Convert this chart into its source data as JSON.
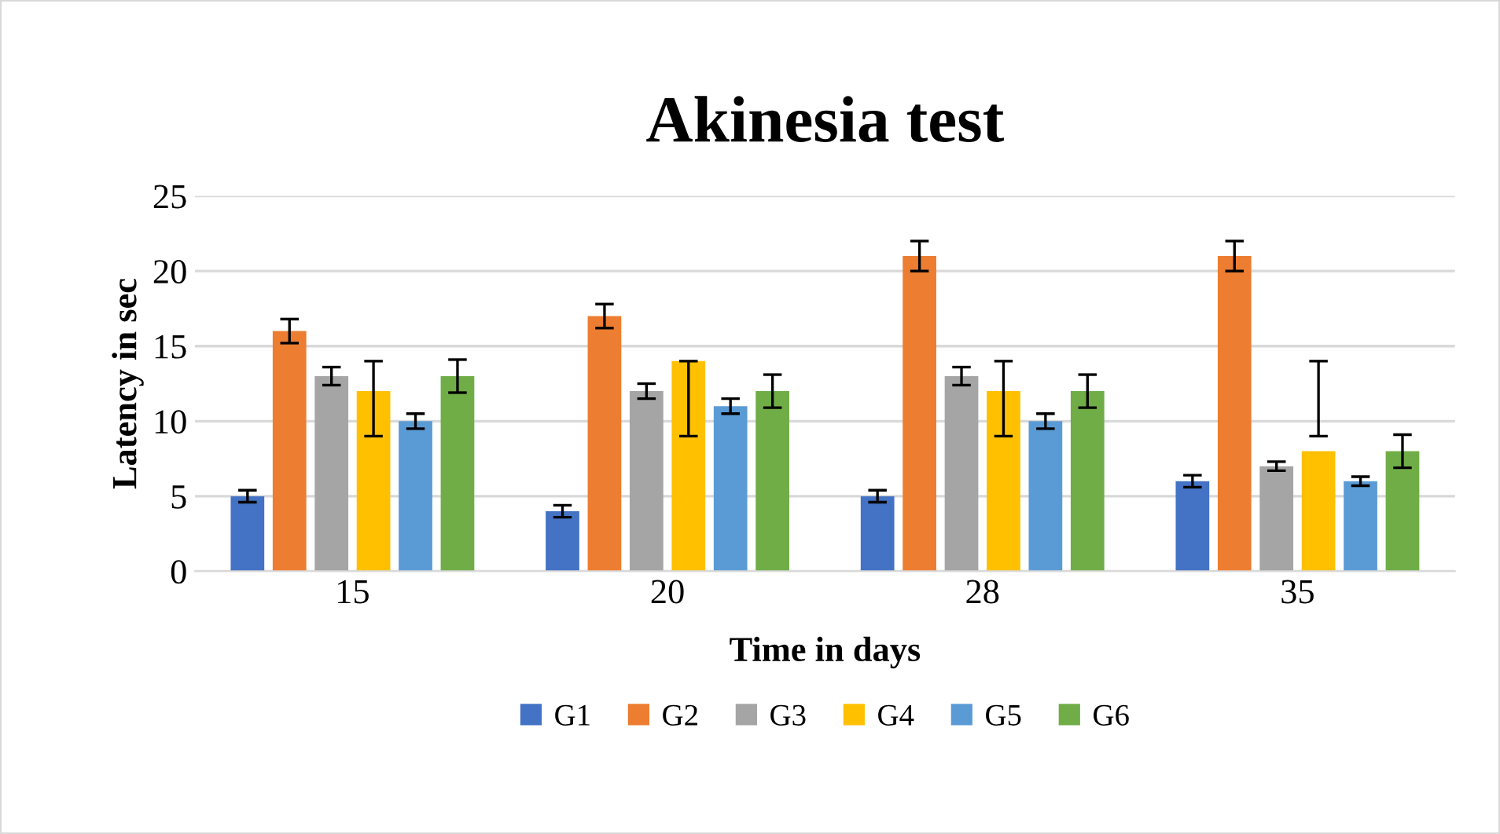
{
  "chart_data": {
    "type": "bar",
    "title": "Akinesia test",
    "xlabel": "Time in days",
    "ylabel": "Latency in sec",
    "categories": [
      "15",
      "20",
      "28",
      "35"
    ],
    "series": [
      {
        "name": "G1",
        "color": "#4472c4",
        "values": [
          5,
          4,
          5,
          6
        ],
        "errors": [
          0.4,
          0.4,
          0.4,
          0.4
        ]
      },
      {
        "name": "G2",
        "color": "#ed7d31",
        "values": [
          16,
          17,
          21,
          21
        ],
        "errors": [
          0.8,
          0.8,
          1,
          1
        ]
      },
      {
        "name": "G3",
        "color": "#a5a5a5",
        "values": [
          13,
          12,
          13,
          7
        ],
        "errors": [
          0.6,
          0.5,
          0.6,
          0.3
        ]
      },
      {
        "name": "G4",
        "color": "#ffc000",
        "values": [
          12,
          14,
          12,
          8
        ],
        "errors": [
          [
            9,
            14
          ],
          [
            9,
            14
          ],
          [
            9,
            14
          ],
          [
            9,
            14
          ]
        ]
      },
      {
        "name": "G5",
        "color": "#5b9bd5",
        "values": [
          10,
          11,
          10,
          6
        ],
        "errors": [
          0.5,
          0.5,
          0.5,
          0.3
        ]
      },
      {
        "name": "G6",
        "color": "#70ad47",
        "values": [
          13,
          12,
          12,
          8
        ],
        "errors": [
          1.1,
          1.1,
          1.1,
          1.1
        ]
      }
    ],
    "ylim": [
      0,
      25
    ],
    "yticks": [
      0,
      5,
      10,
      15,
      20,
      25
    ],
    "grid": "y",
    "legend": "bottom"
  }
}
